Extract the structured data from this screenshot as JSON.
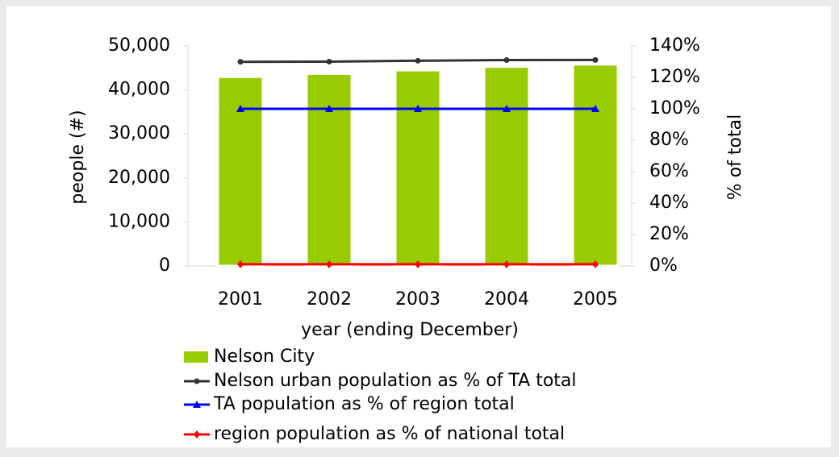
{
  "chart_data": {
    "type": "bar",
    "categories": [
      "2001",
      "2002",
      "2003",
      "2004",
      "2005"
    ],
    "xlabel": "year (ending December)",
    "ylabel": "people (#)",
    "y2label": "% of total",
    "ylim": [
      0,
      50000
    ],
    "yticks": [
      0,
      {
        "value": 10000,
        "label": "10,000"
      },
      {
        "value": 20000,
        "label": "20,000"
      },
      {
        "value": 30000,
        "label": "30,000"
      },
      {
        "value": 40000,
        "label": "40,000"
      },
      {
        "value": 50000,
        "label": "50,000"
      }
    ],
    "y2lim": [
      0,
      140
    ],
    "y2ticks": [
      {
        "value": 0,
        "label": "0%"
      },
      {
        "value": 20,
        "label": "20%"
      },
      {
        "value": 40,
        "label": "40%"
      },
      {
        "value": 60,
        "label": "60%"
      },
      {
        "value": 80,
        "label": "80%"
      },
      {
        "value": 100,
        "label": "100%"
      },
      {
        "value": 120,
        "label": "120%"
      },
      {
        "value": 140,
        "label": "140%"
      }
    ],
    "series": [
      {
        "name": "Nelson City",
        "type": "bar",
        "color": "#99cc00",
        "values": [
          43000,
          43700,
          44500,
          45300,
          45800
        ]
      },
      {
        "name": "Nelson urban population as % of TA total",
        "type": "line",
        "axis": "y2",
        "marker": "circle",
        "color": "#333333",
        "values": [
          129.9,
          130.0,
          130.6,
          131.0,
          131.1
        ]
      },
      {
        "name": "TA population as % of region total",
        "type": "line",
        "axis": "y2",
        "marker": "triangle",
        "color": "#0000ff",
        "values": [
          100,
          100,
          100,
          100,
          100
        ]
      },
      {
        "name": "region population as % of national total",
        "type": "line",
        "axis": "y2",
        "marker": "diamond",
        "color": "#ff0000",
        "values": [
          1.1,
          1.1,
          1.1,
          1.1,
          1.1
        ]
      }
    ]
  }
}
